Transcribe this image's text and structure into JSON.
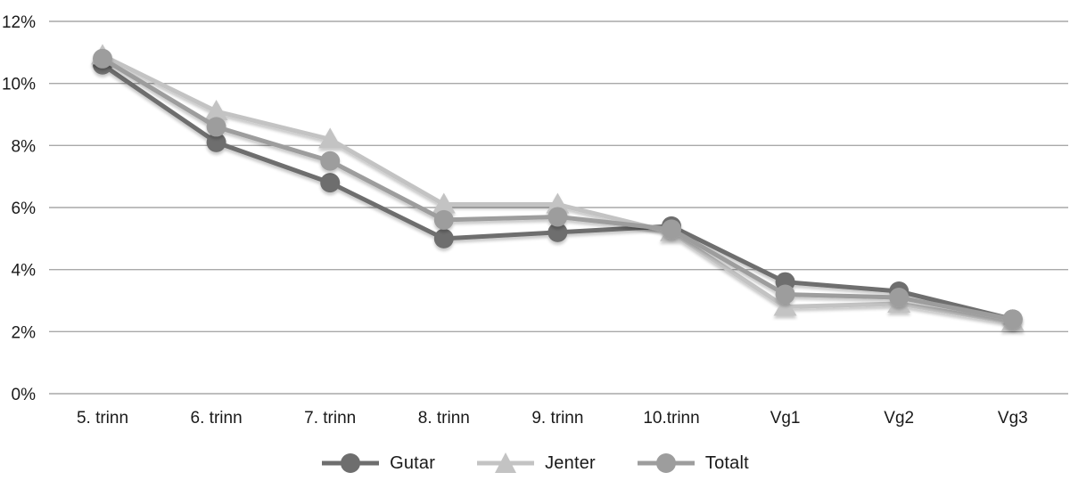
{
  "chart_data": {
    "type": "line",
    "categories": [
      "5. trinn",
      "6. trinn",
      "7. trinn",
      "8. trinn",
      "9. trinn",
      "10.trinn",
      "Vg1",
      "Vg2",
      "Vg3"
    ],
    "series": [
      {
        "name": "Gutar",
        "marker": "circle",
        "color": "#6e6e6e",
        "values": [
          10.6,
          8.1,
          6.8,
          5.0,
          5.2,
          5.4,
          3.6,
          3.3,
          2.4
        ]
      },
      {
        "name": "Jenter",
        "marker": "triangle",
        "color": "#c3c3c3",
        "values": [
          10.9,
          9.1,
          8.2,
          6.1,
          6.1,
          5.2,
          2.8,
          2.9,
          2.3
        ]
      },
      {
        "name": "Totalt",
        "marker": "circle",
        "color": "#9d9d9d",
        "values": [
          10.8,
          8.6,
          7.5,
          5.6,
          5.7,
          5.3,
          3.2,
          3.1,
          2.4
        ]
      }
    ],
    "title": "",
    "xlabel": "",
    "ylabel": "",
    "ylim": [
      0,
      12
    ],
    "ytick_step": 2,
    "ytick_labels": [
      "0%",
      "2%",
      "4%",
      "6%",
      "8%",
      "10%",
      "12%"
    ],
    "grid": true,
    "legend_position": "bottom",
    "colors": {
      "gridline": "#a9a9a9",
      "text": "#1a1a1a",
      "background": "#ffffff"
    }
  }
}
